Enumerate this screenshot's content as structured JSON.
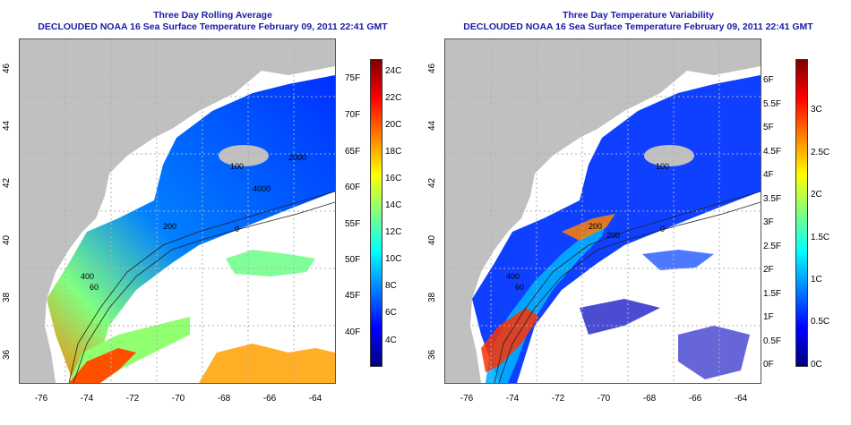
{
  "colors": {
    "title": "#1a1aa8",
    "land": "#c0c0c0",
    "no_data": "#ffffff",
    "grid": "#b0b0b0",
    "colorbar_stops": [
      "#00007f",
      "#0000ff",
      "#0080ff",
      "#00ffff",
      "#80ff80",
      "#ffff00",
      "#ff8000",
      "#ff0000",
      "#7f0000"
    ]
  },
  "panels": [
    {
      "title": "Three Day Rolling Average",
      "subtitle": "DECLOUDED NOAA 16 Sea Surface Temperature February 09, 2011 22:41 GMT",
      "x_ticks": [
        "-76",
        "-74",
        "-72",
        "-70",
        "-68",
        "-66",
        "-64"
      ],
      "y_ticks": [
        "36",
        "38",
        "40",
        "42",
        "44",
        "46"
      ],
      "contour_labels": [
        "100",
        "2000",
        "200",
        "0",
        "400",
        "4000",
        "60"
      ],
      "colorbar_f": [
        "40F",
        "45F",
        "50F",
        "55F",
        "60F",
        "65F",
        "70F",
        "75F"
      ],
      "colorbar_c": [
        "4C",
        "6C",
        "8C",
        "10C",
        "12C",
        "14C",
        "16C",
        "18C",
        "20C",
        "22C",
        "24C"
      ]
    },
    {
      "title": "Three Day Temperature Variability",
      "subtitle": "DECLOUDED NOAA 16 Sea Surface Temperature February 09, 2011 22:41 GMT",
      "x_ticks": [
        "-76",
        "-74",
        "-72",
        "-70",
        "-68",
        "-66",
        "-64"
      ],
      "y_ticks": [
        "36",
        "38",
        "40",
        "42",
        "44",
        "46"
      ],
      "contour_labels": [
        "100",
        "200",
        "200",
        "0",
        "400",
        "60"
      ],
      "colorbar_f": [
        "0F",
        "0.5F",
        "1F",
        "1.5F",
        "2F",
        "2.5F",
        "3F",
        "3.5F",
        "4F",
        "4.5F",
        "5F",
        "5.5F",
        "6F"
      ],
      "colorbar_c": [
        "0C",
        "0.5C",
        "1C",
        "1.5C",
        "2C",
        "2.5C",
        "3C"
      ]
    }
  ]
}
